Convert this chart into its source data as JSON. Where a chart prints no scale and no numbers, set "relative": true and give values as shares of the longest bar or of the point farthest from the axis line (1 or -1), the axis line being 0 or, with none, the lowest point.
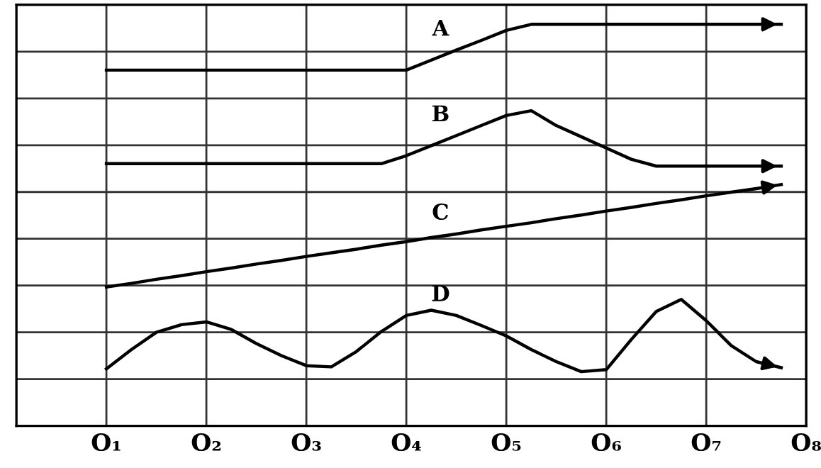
{
  "chart_data": {
    "type": "line",
    "relative": true,
    "grid": true,
    "legend": false,
    "marker": "none",
    "line_style": "solid",
    "tick_labels": "x",
    "categories": [
      "O₁",
      null,
      null,
      null,
      "O₂",
      null,
      null,
      null,
      "O₃",
      null,
      null,
      null,
      "O₄",
      null,
      null,
      null,
      "O₅",
      null,
      null,
      null,
      "O₆",
      null,
      null,
      null,
      "O₇",
      null,
      null,
      null,
      "O₈"
    ],
    "series": [
      {
        "name": "A",
        "color": "#000000",
        "values": [
          0.886,
          0.886,
          0.886,
          0.886,
          0.886,
          0.886,
          0.886,
          0.886,
          0.886,
          0.886,
          0.886,
          0.886,
          0.886,
          0.911,
          0.936,
          0.96,
          0.985,
          1,
          1,
          1,
          1,
          1,
          1,
          1,
          1,
          1,
          1,
          1,
          null
        ]
      },
      {
        "name": "B",
        "color": "#000000",
        "values": [
          0.653,
          0.653,
          0.653,
          0.653,
          0.653,
          0.653,
          0.653,
          0.653,
          0.653,
          0.653,
          0.653,
          0.653,
          0.673,
          0.698,
          0.723,
          0.748,
          0.773,
          0.785,
          0.748,
          0.72,
          0.692,
          0.664,
          0.647,
          0.647,
          0.647,
          0.647,
          0.647,
          0.647,
          null
        ]
      },
      {
        "name": "C",
        "color": "#000000",
        "values": [
          0.346,
          0.355,
          0.365,
          0.374,
          0.384,
          0.393,
          0.403,
          0.412,
          0.422,
          0.431,
          0.44,
          0.45,
          0.459,
          0.469,
          0.478,
          0.488,
          0.497,
          0.506,
          0.516,
          0.525,
          0.535,
          0.544,
          0.554,
          0.563,
          0.573,
          0.582,
          0.591,
          0.601,
          null
        ]
      },
      {
        "name": "D",
        "color": "#000000",
        "values": [
          0.142,
          0.19,
          0.233,
          0.252,
          0.259,
          0.24,
          0.205,
          0.175,
          0.15,
          0.147,
          0.185,
          0.235,
          0.275,
          0.288,
          0.275,
          0.25,
          0.224,
          0.19,
          0.16,
          0.135,
          0.14,
          0.215,
          0.285,
          0.315,
          0.262,
          0.2,
          0.16,
          0.145,
          null
        ]
      }
    ]
  }
}
